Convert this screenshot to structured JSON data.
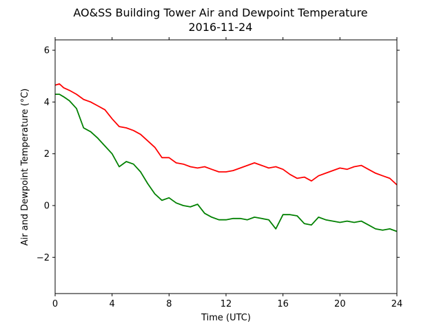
{
  "chart_data": {
    "type": "line",
    "title": "AO&SS Building Tower Air and Dewpoint Temperature",
    "subtitle": "2016-11-24",
    "xlabel": "Time (UTC)",
    "ylabel": "Air and Dewpoint Temperature (°C)",
    "xlim": [
      0,
      24
    ],
    "ylim": [
      -3.4,
      6.4
    ],
    "xticks": [
      "0",
      "4",
      "8",
      "12",
      "16",
      "20",
      "24"
    ],
    "yticks": [
      "−2",
      "0",
      "2",
      "4",
      "6"
    ],
    "grid": false,
    "series": [
      {
        "color": "#ff0000",
        "x": [
          0,
          0.3,
          0.6,
          1,
          1.5,
          2,
          2.5,
          3,
          3.5,
          4,
          4.5,
          5,
          5.5,
          6,
          6.5,
          7,
          7.5,
          8,
          8.5,
          9,
          9.5,
          10,
          10.5,
          11,
          11.5,
          12,
          12.5,
          13,
          13.5,
          14,
          14.5,
          15,
          15.5,
          16,
          16.5,
          17,
          17.5,
          18,
          18.5,
          19,
          19.5,
          20,
          20.5,
          21,
          21.5,
          22,
          22.5,
          23,
          23.5,
          24
        ],
        "values": [
          4.65,
          4.7,
          4.55,
          4.45,
          4.3,
          4.1,
          4.0,
          3.85,
          3.7,
          3.35,
          3.05,
          3.0,
          2.9,
          2.75,
          2.5,
          2.25,
          1.85,
          1.85,
          1.65,
          1.6,
          1.5,
          1.45,
          1.5,
          1.4,
          1.3,
          1.3,
          1.35,
          1.45,
          1.55,
          1.65,
          1.55,
          1.45,
          1.5,
          1.4,
          1.2,
          1.05,
          1.1,
          0.95,
          1.15,
          1.25,
          1.35,
          1.45,
          1.4,
          1.5,
          1.55,
          1.4,
          1.25,
          1.15,
          1.05,
          0.8
        ]
      },
      {
        "color": "#008000",
        "x": [
          0,
          0.3,
          0.6,
          1,
          1.5,
          2,
          2.5,
          3,
          3.5,
          4,
          4.5,
          5,
          5.5,
          6,
          6.5,
          7,
          7.5,
          8,
          8.5,
          9,
          9.5,
          10,
          10.5,
          11,
          11.5,
          12,
          12.5,
          13,
          13.5,
          14,
          14.5,
          15,
          15.5,
          16,
          16.5,
          17,
          17.5,
          18,
          18.5,
          19,
          19.5,
          20,
          20.5,
          21,
          21.5,
          22,
          22.5,
          23,
          23.5,
          24
        ],
        "values": [
          4.3,
          4.3,
          4.2,
          4.05,
          3.75,
          3.0,
          2.85,
          2.6,
          2.3,
          2.0,
          1.5,
          1.7,
          1.6,
          1.3,
          0.85,
          0.45,
          0.2,
          0.3,
          0.1,
          0.0,
          -0.05,
          0.05,
          -0.3,
          -0.45,
          -0.55,
          -0.55,
          -0.5,
          -0.5,
          -0.55,
          -0.45,
          -0.5,
          -0.55,
          -0.9,
          -0.35,
          -0.35,
          -0.4,
          -0.7,
          -0.75,
          -0.45,
          -0.55,
          -0.6,
          -0.65,
          -0.6,
          -0.65,
          -0.6,
          -0.75,
          -0.9,
          -0.95,
          -0.9,
          -1.0
        ]
      }
    ]
  }
}
